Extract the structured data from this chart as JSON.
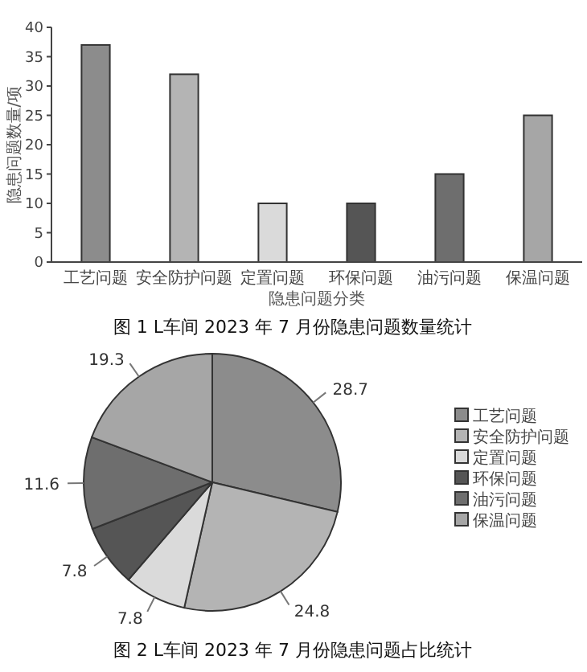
{
  "chart_data": [
    {
      "type": "bar",
      "title": "图 1 L车间 2023 年 7 月份隐患问题数量统计",
      "xlabel": "隐患问题分类",
      "ylabel": "隐患问题数量/项",
      "categories": [
        "工艺问题",
        "安全防护问题",
        "定置问题",
        "环保问题",
        "油污问题",
        "保温问题"
      ],
      "values": [
        37,
        32,
        10,
        10,
        15,
        25
      ],
      "colors": [
        "#8c8c8c",
        "#b4b4b4",
        "#dadada",
        "#555555",
        "#6e6e6e",
        "#a6a6a6"
      ],
      "ylim": [
        0,
        40
      ],
      "yticks": [
        0,
        5,
        10,
        15,
        20,
        25,
        30,
        35,
        40
      ],
      "legend": false,
      "grid": false
    },
    {
      "type": "pie",
      "title": "图 2 L车间 2023 年 7 月份隐患问题占比统计",
      "categories": [
        "工艺问题",
        "安全防护问题",
        "定置问题",
        "环保问题",
        "油污问题",
        "保温问题"
      ],
      "values": [
        28.7,
        24.8,
        7.8,
        7.8,
        11.6,
        19.3
      ],
      "colors": [
        "#8c8c8c",
        "#b4b4b4",
        "#dadada",
        "#555555",
        "#6e6e6e",
        "#a6a6a6"
      ],
      "data_labels": true,
      "legend": "right"
    }
  ]
}
